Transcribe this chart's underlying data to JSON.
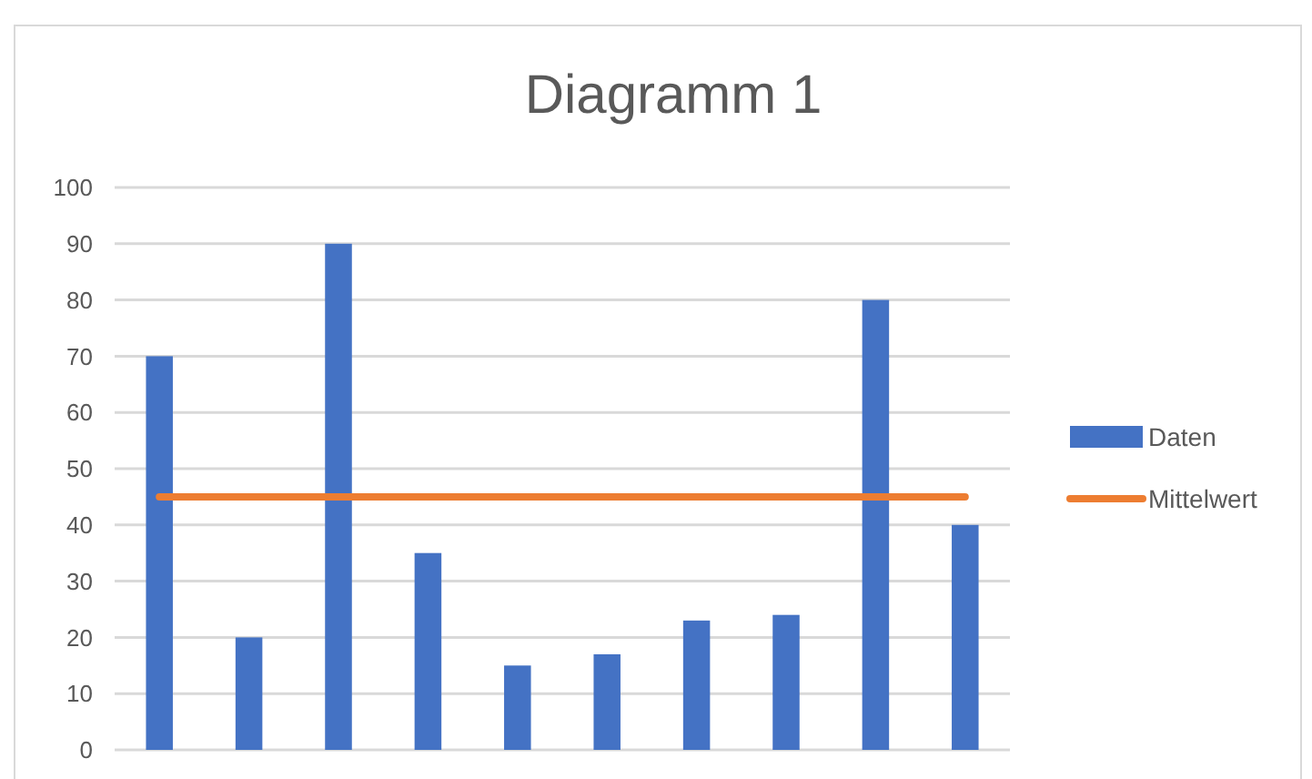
{
  "chart_data": {
    "type": "bar",
    "title": "Diagramm 1",
    "categories": [
      null,
      null,
      null,
      null,
      null,
      null,
      null,
      null,
      null,
      null
    ],
    "series": [
      {
        "name": "Daten",
        "color": "#4472c4",
        "values": [
          70,
          20,
          90,
          35,
          15,
          17,
          23,
          24,
          80,
          40
        ]
      },
      {
        "name": "Mittelwert",
        "type": "line",
        "color": "#ed7d31",
        "values": [
          45,
          45,
          45,
          45,
          45,
          45,
          45,
          45,
          45,
          45
        ]
      }
    ],
    "ylim": [
      0,
      100
    ],
    "yticks": [
      0,
      10,
      20,
      30,
      40,
      50,
      60,
      70,
      80,
      90,
      100
    ],
    "grid": "y",
    "legend": "right"
  }
}
